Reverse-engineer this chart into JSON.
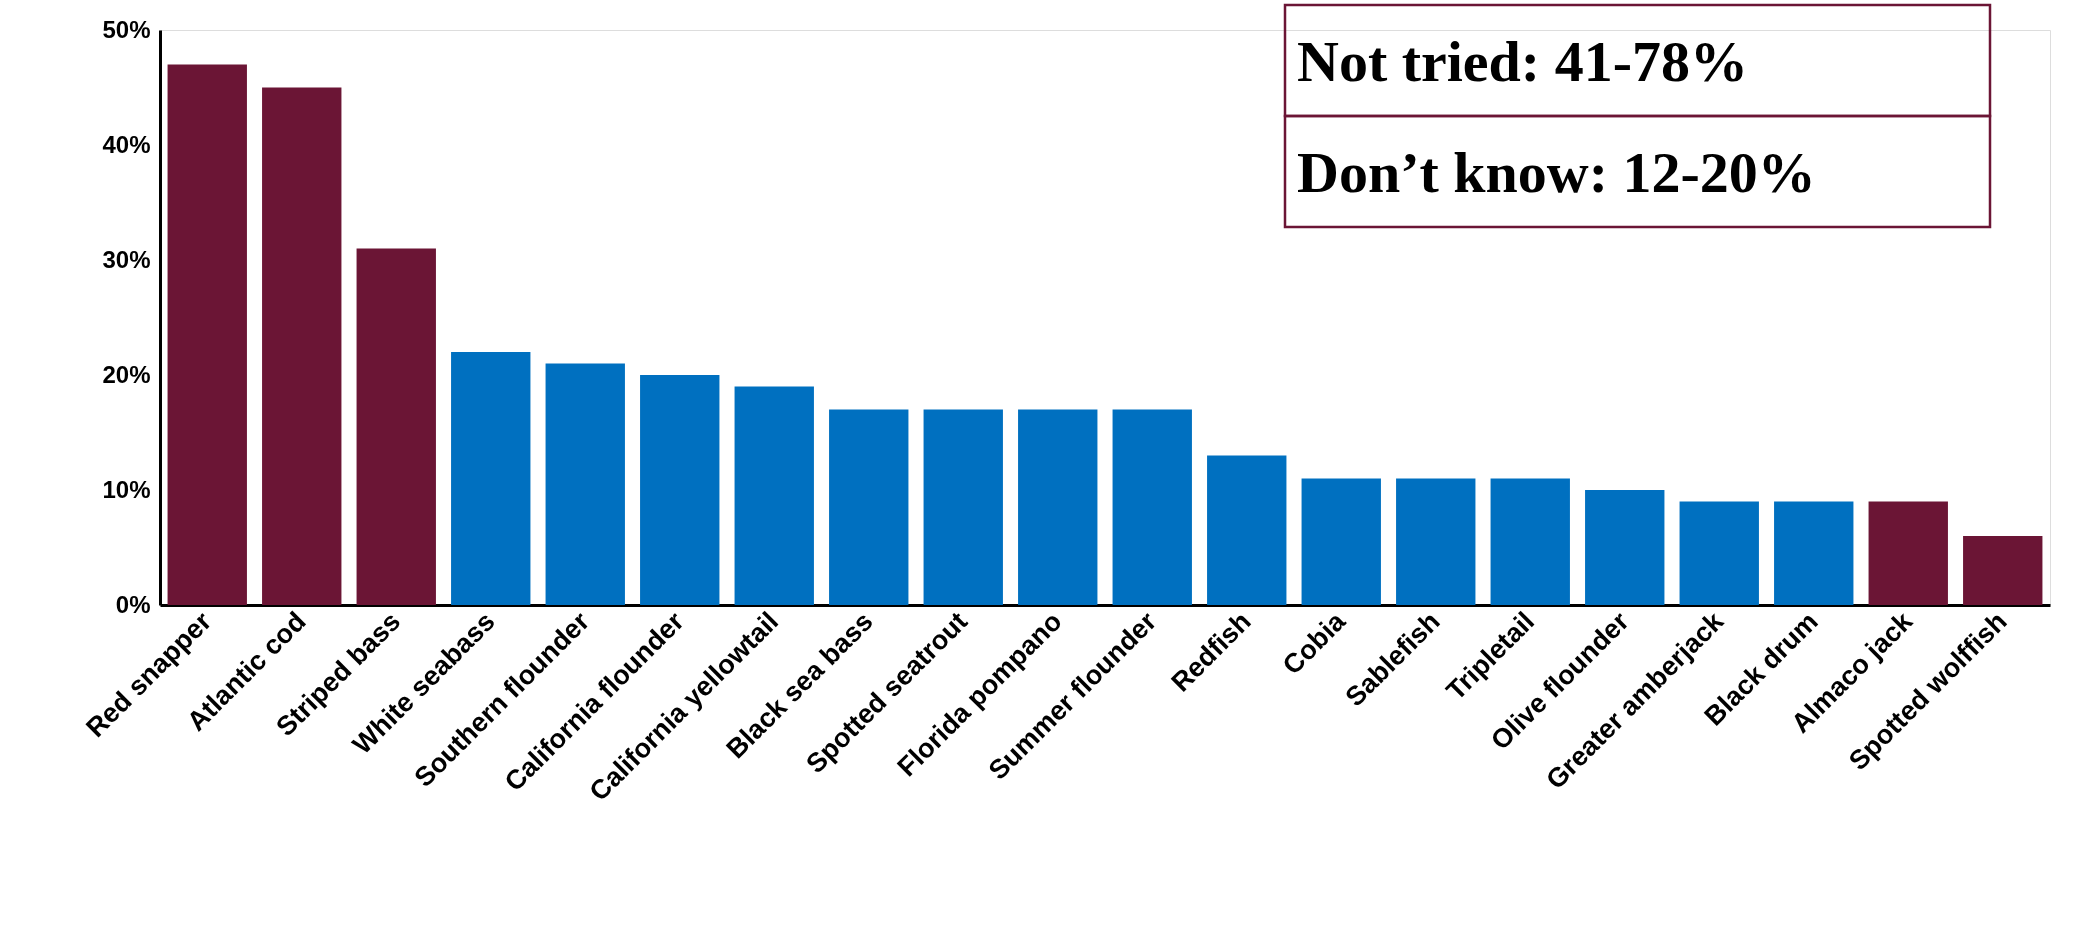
{
  "chart_data": {
    "type": "bar",
    "categories": [
      "Red snapper",
      "Atlantic cod",
      "Striped bass",
      "White seabass",
      "Southern flounder",
      "California flounder",
      "California yellowtail",
      "Black sea bass",
      "Spotted seatrout",
      "Florida pompano",
      "Summer flounder",
      "Redfish",
      "Cobia",
      "Sablefish",
      "Tripletail",
      "Olive flounder",
      "Greater amberjack",
      "Black drum",
      "Almaco jack",
      "Spotted wolffish"
    ],
    "values": [
      47,
      45,
      31,
      22,
      21,
      20,
      19,
      17,
      17,
      17,
      17,
      13,
      11,
      11,
      11,
      10,
      9,
      9,
      9,
      6
    ],
    "colors": [
      "#6b1535",
      "#6b1535",
      "#6b1535",
      "#0070c0",
      "#0070c0",
      "#0070c0",
      "#0070c0",
      "#0070c0",
      "#0070c0",
      "#0070c0",
      "#0070c0",
      "#0070c0",
      "#0070c0",
      "#0070c0",
      "#0070c0",
      "#0070c0",
      "#0070c0",
      "#0070c0",
      "#6b1535",
      "#6b1535"
    ],
    "ylim": [
      0,
      50
    ],
    "yticks": [
      {
        "value": 0,
        "label": "0%"
      },
      {
        "value": 10,
        "label": "10%"
      },
      {
        "value": 20,
        "label": "20%"
      },
      {
        "value": 30,
        "label": "30%"
      },
      {
        "value": 40,
        "label": "40%"
      },
      {
        "value": 50,
        "label": "50%"
      }
    ],
    "grid": false,
    "annotations": [
      "Not tried: 41-78%",
      "Don’t know: 12-20%"
    ]
  }
}
